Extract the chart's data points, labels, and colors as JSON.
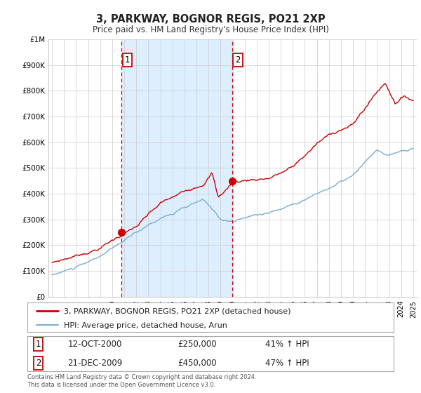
{
  "title": "3, PARKWAY, BOGNOR REGIS, PO21 2XP",
  "subtitle": "Price paid vs. HM Land Registry's House Price Index (HPI)",
  "legend_line1": "3, PARKWAY, BOGNOR REGIS, PO21 2XP (detached house)",
  "legend_line2": "HPI: Average price, detached house, Arun",
  "annotation1_label": "1",
  "annotation1_date": "12-OCT-2000",
  "annotation1_price": "£250,000",
  "annotation1_hpi": "41% ↑ HPI",
  "annotation2_label": "2",
  "annotation2_date": "21-DEC-2009",
  "annotation2_price": "£450,000",
  "annotation2_hpi": "47% ↑ HPI",
  "footnote1": "Contains HM Land Registry data © Crown copyright and database right 2024.",
  "footnote2": "This data is licensed under the Open Government Licence v3.0.",
  "red_color": "#cc0000",
  "blue_color": "#7aadd4",
  "shade_color": "#ddeeff",
  "background_color": "#ffffff",
  "grid_color": "#cccccc",
  "vline_color": "#cc0000",
  "vline_x1": 2000.79,
  "vline_x2": 2009.97,
  "point1_x": 2000.79,
  "point1_y": 250000,
  "point2_x": 2009.97,
  "point2_y": 450000,
  "ylim": [
    0,
    1000000
  ],
  "xlim": [
    1994.7,
    2025.3
  ],
  "yticks": [
    0,
    100000,
    200000,
    300000,
    400000,
    500000,
    600000,
    700000,
    800000,
    900000,
    1000000
  ],
  "ytick_labels": [
    "£0",
    "£100K",
    "£200K",
    "£300K",
    "£400K",
    "£500K",
    "£600K",
    "£700K",
    "£800K",
    "£900K",
    "£1M"
  ]
}
